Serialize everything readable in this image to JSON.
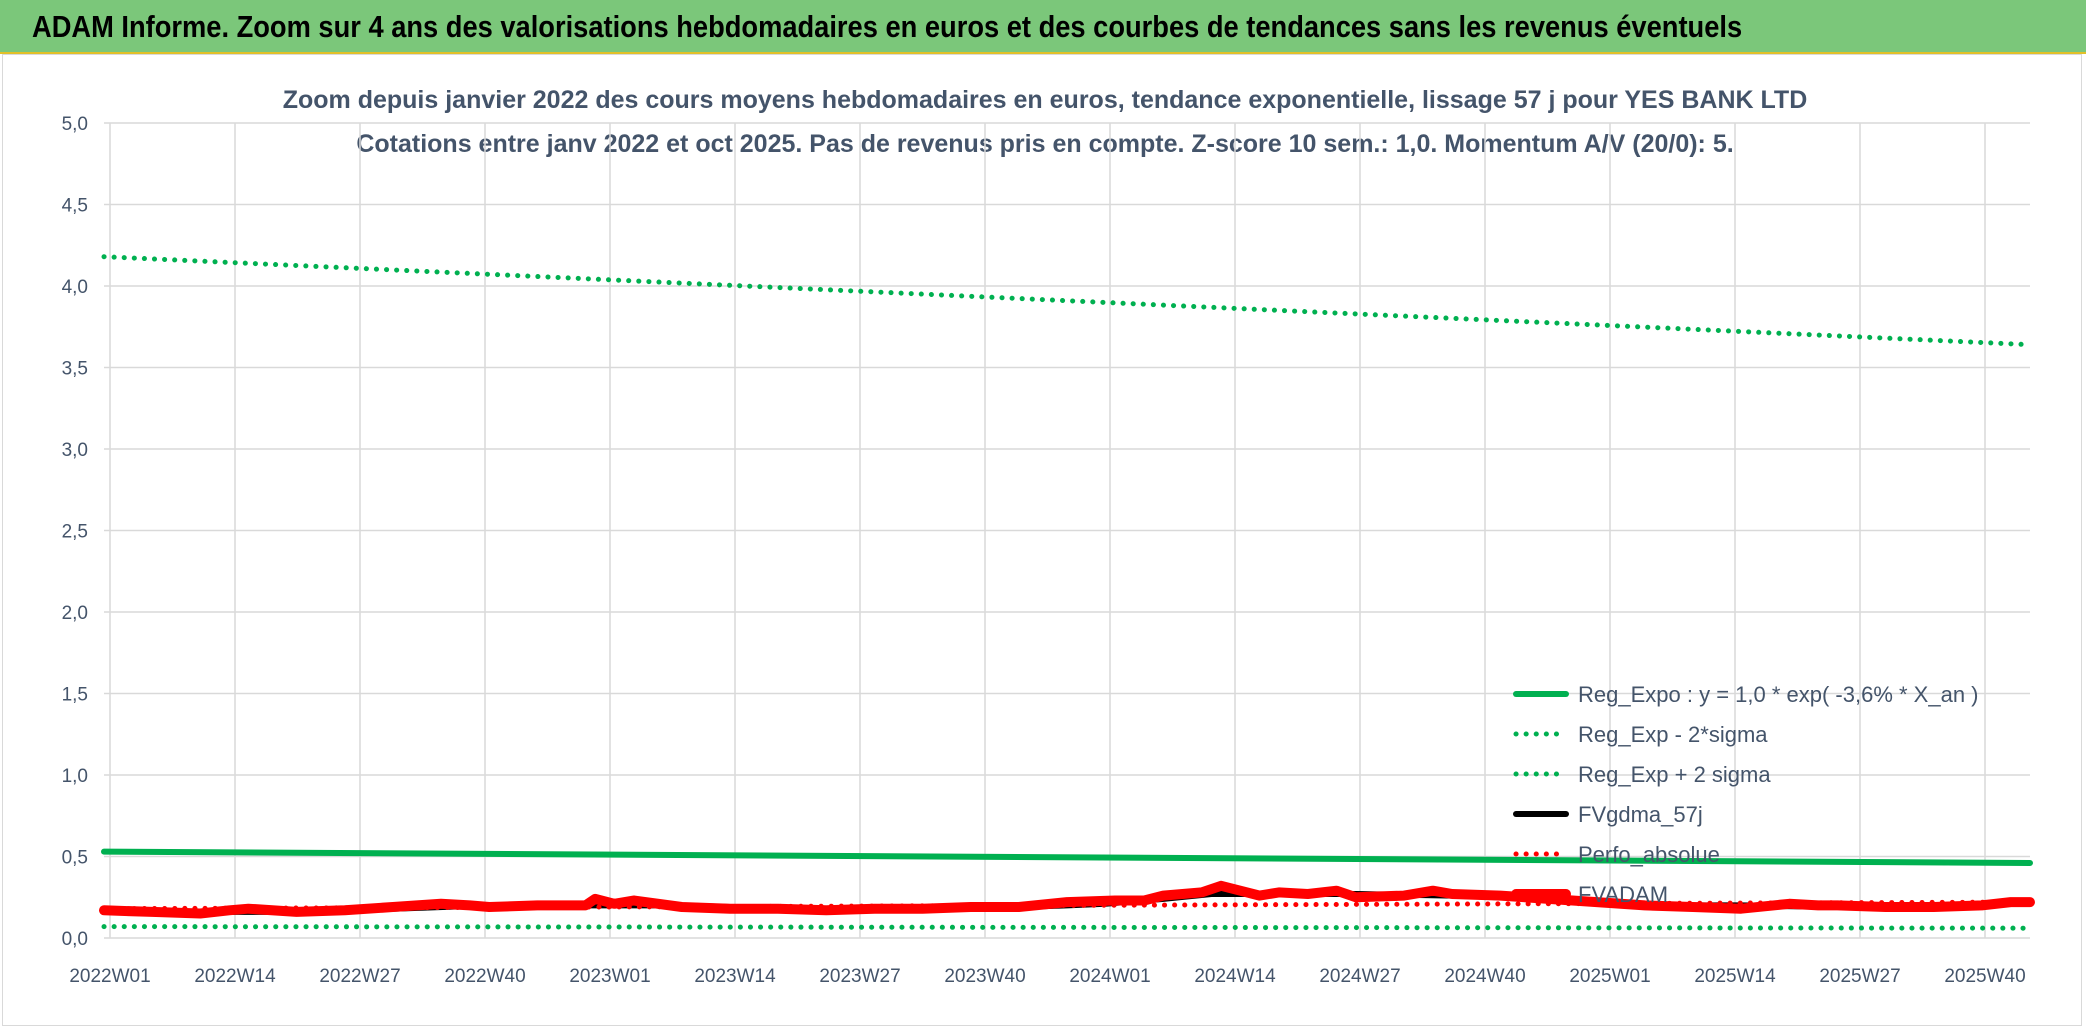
{
  "header": {
    "title": "ADAM Informe. Zoom sur 4 ans des valorisations hebdomadaires en euros et des courbes de tendances sans les revenus éventuels"
  },
  "colors": {
    "header_bg": "#7bc77a",
    "green": "#00b050",
    "black": "#000000",
    "red": "#ff0000",
    "text": "#44546a",
    "grid": "#d9d9d9"
  },
  "chart_data": {
    "type": "line",
    "title": "Zoom depuis janvier 2022 des cours moyens hebdomadaires en euros, tendance exponentielle, lissage 57 j pour YES BANK LTD",
    "subtitle": "Cotations entre janv 2022 et oct 2025. Pas de revenus pris en compte. Z-score 10 sem.: 1,0. Momentum A/V (20/0): 5.",
    "x_ticks": [
      "2022W01",
      "2022W14",
      "2022W27",
      "2022W40",
      "2023W01",
      "2023W14",
      "2023W27",
      "2023W40",
      "2024W01",
      "2024W14",
      "2024W27",
      "2024W40",
      "2025W01",
      "2025W14",
      "2025W27",
      "2025W40"
    ],
    "y_ticks": [
      "0,0",
      "0,5",
      "1,0",
      "1,5",
      "2,0",
      "2,5",
      "3,0",
      "3,5",
      "4,0",
      "4,5",
      "5,0"
    ],
    "ylim": [
      0,
      5
    ],
    "x_range_weeks": [
      0,
      200
    ],
    "grid": true,
    "legend_position": "right",
    "series": [
      {
        "name": "Reg_Expo : y = 1,0 * exp( -3,6% *  X_an )",
        "style": "solid",
        "color": "#00b050",
        "x": [
          0,
          200
        ],
        "y": [
          0.53,
          0.46
        ]
      },
      {
        "name": "Reg_Exp - 2*sigma",
        "style": "dotted",
        "color": "#00b050",
        "x": [
          0,
          200
        ],
        "y": [
          0.07,
          0.06
        ]
      },
      {
        "name": "Reg_Exp + 2 sigma",
        "style": "dotted",
        "color": "#00b050",
        "x": [
          0,
          200
        ],
        "y": [
          4.18,
          3.64
        ]
      },
      {
        "name": "FVgdma_57j",
        "style": "solid",
        "color": "#000000",
        "x": [
          0,
          10,
          20,
          30,
          40,
          50,
          60,
          70,
          80,
          90,
          100,
          104,
          110,
          115,
          120,
          130,
          140,
          150,
          155,
          160,
          170,
          180,
          190,
          200
        ],
        "y": [
          0.16,
          0.16,
          0.16,
          0.18,
          0.2,
          0.2,
          0.2,
          0.18,
          0.18,
          0.18,
          0.2,
          0.21,
          0.24,
          0.27,
          0.27,
          0.27,
          0.26,
          0.24,
          0.22,
          0.2,
          0.2,
          0.19,
          0.2,
          0.22
        ]
      },
      {
        "name": "Perfo_absolue",
        "style": "dotted",
        "color": "#ff0000",
        "x": [
          0,
          200
        ],
        "y": [
          0.18,
          0.22
        ]
      },
      {
        "name": "FVADAM",
        "style": "solid-thick",
        "color": "#ff0000",
        "x": [
          0,
          5,
          10,
          13,
          15,
          20,
          25,
          30,
          35,
          38,
          40,
          45,
          50,
          51,
          53,
          55,
          60,
          65,
          70,
          75,
          80,
          85,
          90,
          95,
          100,
          105,
          108,
          110,
          112,
          114,
          116,
          118,
          120,
          122,
          125,
          128,
          130,
          135,
          138,
          140,
          145,
          150,
          155,
          160,
          165,
          170,
          175,
          178,
          180,
          185,
          190,
          195,
          198,
          200
        ],
        "y": [
          0.17,
          0.16,
          0.15,
          0.17,
          0.18,
          0.16,
          0.17,
          0.19,
          0.21,
          0.2,
          0.19,
          0.2,
          0.2,
          0.24,
          0.21,
          0.23,
          0.19,
          0.18,
          0.18,
          0.17,
          0.18,
          0.18,
          0.19,
          0.19,
          0.22,
          0.23,
          0.23,
          0.26,
          0.27,
          0.28,
          0.32,
          0.29,
          0.26,
          0.28,
          0.27,
          0.29,
          0.25,
          0.26,
          0.29,
          0.27,
          0.26,
          0.24,
          0.22,
          0.2,
          0.19,
          0.18,
          0.21,
          0.2,
          0.2,
          0.19,
          0.19,
          0.2,
          0.22,
          0.22
        ]
      }
    ]
  }
}
